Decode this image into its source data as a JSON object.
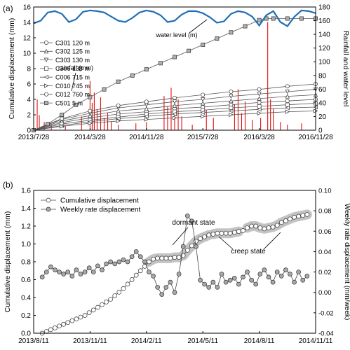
{
  "panels": [
    {
      "panel_label": "(a)",
      "chart_data": {
        "type": "line",
        "xlabel": "",
        "ylabel_left": "Cumulative displacement (mm)",
        "ylabel_right": "Rainfall and water level",
        "x_ticks": [
          "2013/7/28",
          "2014/3/28",
          "2014/11/28",
          "2015/7/28",
          "2016/3/28",
          "2016/11/28"
        ],
        "x_range_months": [
          0,
          40
        ],
        "ylim_left": [
          0,
          16
        ],
        "yticks_left": [
          "0",
          "2",
          "4",
          "6",
          "8",
          "10",
          "12",
          "14",
          "16"
        ],
        "ylim_right": [
          0,
          180
        ],
        "yticks_right": [
          "0",
          "20",
          "40",
          "60",
          "80",
          "100",
          "120",
          "140",
          "160",
          "180"
        ],
        "annotations": [
          "water level (m)",
          "rainfall (mm)"
        ],
        "legend_position": "left-middle",
        "water_level": {
          "name": "water level (m)",
          "color": "#1f6fb4",
          "x_months": [
            0,
            1,
            2,
            3,
            4,
            5,
            6,
            7,
            8,
            9,
            10,
            11,
            12,
            13,
            14,
            15,
            16,
            17,
            18,
            19,
            20,
            21,
            22,
            23,
            24,
            25,
            26,
            27,
            28,
            29,
            30,
            31,
            32,
            33,
            34,
            35,
            36,
            37,
            38,
            39,
            40
          ],
          "values": [
            156,
            160,
            172,
            174,
            170,
            158,
            162,
            173,
            175,
            174,
            172,
            166,
            160,
            158,
            164,
            172,
            175,
            173,
            168,
            158,
            160,
            169,
            174,
            174,
            171,
            165,
            157,
            159,
            170,
            174,
            172,
            166,
            153,
            168,
            174,
            158,
            152,
            166,
            175,
            174,
            171
          ]
        },
        "rainfall": {
          "name": "rainfall (mm)",
          "color": "#e01010",
          "bars": [
            [
              0.5,
              45
            ],
            [
              0.8,
              22
            ],
            [
              1.5,
              12
            ],
            [
              2.5,
              8
            ],
            [
              4.5,
              6
            ],
            [
              6.8,
              20
            ],
            [
              8.0,
              72
            ],
            [
              8.3,
              40
            ],
            [
              8.6,
              55
            ],
            [
              9.0,
              30
            ],
            [
              9.5,
              48
            ],
            [
              10.0,
              18
            ],
            [
              10.5,
              25
            ],
            [
              11.0,
              12
            ],
            [
              12.0,
              8
            ],
            [
              14.5,
              10
            ],
            [
              16.0,
              12
            ],
            [
              18.5,
              50
            ],
            [
              19.0,
              35
            ],
            [
              19.5,
              62
            ],
            [
              20.0,
              28
            ],
            [
              20.5,
              45
            ],
            [
              21.0,
              20
            ],
            [
              22.5,
              8
            ],
            [
              24.5,
              30
            ],
            [
              25.5,
              18
            ],
            [
              28.5,
              38
            ],
            [
              29.0,
              60
            ],
            [
              29.5,
              25
            ],
            [
              30.0,
              42
            ],
            [
              31.0,
              15
            ],
            [
              32.2,
              18
            ],
            [
              33.2,
              158
            ],
            [
              33.6,
              45
            ],
            [
              34.0,
              32
            ],
            [
              35.0,
              12
            ],
            [
              36.0,
              8
            ],
            [
              38.0,
              10
            ]
          ]
        },
        "series": [
          {
            "name": "C301 120 m",
            "marker": "circle",
            "x_months": [
              0,
              4,
              8,
              12,
              16,
              20,
              24,
              28,
              32,
              36,
              40
            ],
            "values": [
              0,
              1.0,
              1.6,
              2.1,
              2.4,
              2.8,
              3.0,
              3.3,
              3.6,
              3.8,
              4.0
            ]
          },
          {
            "name": "C302 125 m",
            "marker": "triangle-up",
            "x_months": [
              0,
              4,
              8,
              12,
              16,
              20,
              24,
              28,
              32,
              36,
              40
            ],
            "values": [
              0,
              1.2,
              1.9,
              2.5,
              2.8,
              3.2,
              3.5,
              3.8,
              4.1,
              4.4,
              4.6
            ]
          },
          {
            "name": "C303 130 m",
            "marker": "triangle-down",
            "x_months": [
              0,
              4,
              8,
              12,
              16,
              20,
              24,
              28,
              32,
              36,
              40
            ],
            "values": [
              0,
              1.4,
              2.2,
              2.9,
              3.3,
              3.7,
              4.0,
              4.4,
              4.7,
              5.0,
              5.3
            ]
          },
          {
            "name": "C306 138 m",
            "marker": "square",
            "x_months": [
              0,
              4,
              8,
              12,
              16,
              20,
              24,
              28,
              32,
              36,
              40
            ],
            "values": [
              0,
              0.8,
              1.3,
              1.7,
              2.1,
              2.4,
              2.6,
              2.9,
              3.1,
              3.3,
              3.5
            ]
          },
          {
            "name": "C006 715 m",
            "marker": "triangle-left",
            "x_months": [
              0,
              4,
              8,
              12,
              16,
              20,
              24,
              28,
              32,
              36,
              40
            ],
            "values": [
              0,
              0.6,
              1.1,
              1.5,
              1.8,
              2.1,
              2.3,
              2.5,
              2.7,
              2.9,
              3.0
            ]
          },
          {
            "name": "C010 745 m",
            "marker": "triangle-right",
            "x_months": [
              0,
              4,
              8,
              12,
              16,
              20,
              24,
              28,
              32,
              36,
              40
            ],
            "values": [
              0,
              0.5,
              0.9,
              1.2,
              1.4,
              1.6,
              1.8,
              2.0,
              2.2,
              2.4,
              2.5
            ]
          },
          {
            "name": "C012 760 m",
            "marker": "circle-open",
            "x_months": [
              0,
              4,
              8,
              12,
              16,
              20,
              24,
              28,
              32,
              36,
              40
            ],
            "values": [
              0,
              1.5,
              2.5,
              3.2,
              3.7,
              4.2,
              4.6,
              5.0,
              5.3,
              5.7,
              6.0
            ]
          },
          {
            "name": "C501 5 m",
            "marker": "square-filled",
            "x_months": [
              0,
              2,
              4,
              6,
              8,
              10,
              12,
              14,
              16,
              18,
              20,
              22,
              24,
              26,
              28,
              30,
              32,
              33,
              34,
              36,
              38,
              40
            ],
            "values": [
              0,
              0.8,
              2.0,
              3.3,
              4.3,
              5.3,
              6.3,
              7.1,
              7.9,
              8.7,
              9.5,
              10.3,
              11.1,
              11.9,
              12.7,
              13.5,
              14.3,
              14.5,
              14.5,
              14.5,
              14.5,
              14.5
            ]
          }
        ]
      }
    },
    {
      "panel_label": "(b)",
      "chart_data": {
        "type": "line",
        "xlabel": "",
        "ylabel_left": "Cumulative displacement (mm)",
        "ylabel_right": "Weekly rate displacement (mm/week)",
        "x_ticks": [
          "2013/8/11",
          "2013/11/11",
          "2014/2/11",
          "2014/5/11",
          "2014/8/11",
          "2014/11/11"
        ],
        "x_range_weeks": [
          0,
          66
        ],
        "ylim_left": [
          0.0,
          1.6
        ],
        "yticks_left": [
          "0.0",
          "0.2",
          "0.4",
          "0.6",
          "0.8",
          "1.0",
          "1.2",
          "1.4",
          "1.6"
        ],
        "ylim_right": [
          -0.04,
          0.1
        ],
        "yticks_right": [
          "-0.04",
          "-0.02",
          "0.00",
          "0.02",
          "0.04",
          "0.06",
          "0.08",
          "0.10"
        ],
        "legend_position": "top-left",
        "annotations": [
          "dormant state",
          "creep state"
        ],
        "series": [
          {
            "name": "Cumulative displacement",
            "axis": "left",
            "marker": "circle-open",
            "x_weeks": [
              2,
              3,
              4,
              5,
              6,
              7,
              8,
              9,
              10,
              11,
              12,
              13,
              14,
              15,
              16,
              17,
              18,
              19,
              20,
              21,
              22,
              23,
              24,
              25,
              26,
              27,
              28,
              29,
              30,
              31,
              32,
              33,
              34,
              35,
              36,
              37,
              38,
              39,
              40,
              41,
              42,
              43,
              44,
              45,
              46,
              47,
              48,
              49,
              50,
              51,
              52,
              53,
              54,
              55,
              56,
              57,
              58,
              59,
              60,
              61,
              62,
              63,
              64
            ],
            "values": [
              0.0,
              0.02,
              0.04,
              0.06,
              0.08,
              0.1,
              0.12,
              0.14,
              0.16,
              0.18,
              0.2,
              0.23,
              0.26,
              0.29,
              0.32,
              0.35,
              0.38,
              0.42,
              0.46,
              0.5,
              0.55,
              0.6,
              0.65,
              0.7,
              0.75,
              0.8,
              0.83,
              0.84,
              0.84,
              0.84,
              0.84,
              0.85,
              0.85,
              0.87,
              0.93,
              0.98,
              1.03,
              1.06,
              1.08,
              1.1,
              1.11,
              1.12,
              1.12,
              1.12,
              1.12,
              1.13,
              1.14,
              1.15,
              1.18,
              1.2,
              1.2,
              1.18,
              1.17,
              1.18,
              1.19,
              1.21,
              1.24,
              1.26,
              1.28,
              1.3,
              1.31,
              1.32,
              1.33
            ]
          },
          {
            "name": "Weekly rate displacement",
            "axis": "right",
            "marker": "circle-filled",
            "x_weeks": [
              2,
              3,
              4,
              5,
              6,
              7,
              8,
              9,
              10,
              11,
              12,
              13,
              14,
              15,
              16,
              17,
              18,
              19,
              20,
              21,
              22,
              23,
              24,
              25,
              26,
              27,
              28,
              29,
              30,
              31,
              32,
              33,
              34,
              35,
              36,
              37,
              38,
              39,
              40,
              41,
              42,
              43,
              44,
              45,
              46,
              47,
              48,
              49,
              50,
              51,
              52,
              53,
              54,
              55,
              56,
              57,
              58,
              59,
              60,
              61,
              62,
              63,
              64
            ],
            "values": [
              0.015,
              0.02,
              0.025,
              0.022,
              0.02,
              0.018,
              0.02,
              0.016,
              0.022,
              0.018,
              0.02,
              0.024,
              0.02,
              0.026,
              0.022,
              0.028,
              0.03,
              0.028,
              0.03,
              0.032,
              0.03,
              0.035,
              0.04,
              0.035,
              0.03,
              0.02,
              0.016,
              0.005,
              -0.002,
              0.005,
              0.01,
              0.0,
              0.018,
              0.045,
              0.075,
              0.07,
              0.045,
              0.012,
              0.008,
              0.005,
              0.01,
              0.005,
              0.018,
              0.01,
              0.012,
              0.014,
              0.008,
              0.015,
              0.02,
              0.012,
              0.008,
              0.018,
              0.022,
              0.015,
              0.01,
              0.02,
              0.016,
              0.022,
              0.018,
              0.01,
              0.02,
              0.012,
              0.016
            ]
          }
        ]
      }
    }
  ]
}
